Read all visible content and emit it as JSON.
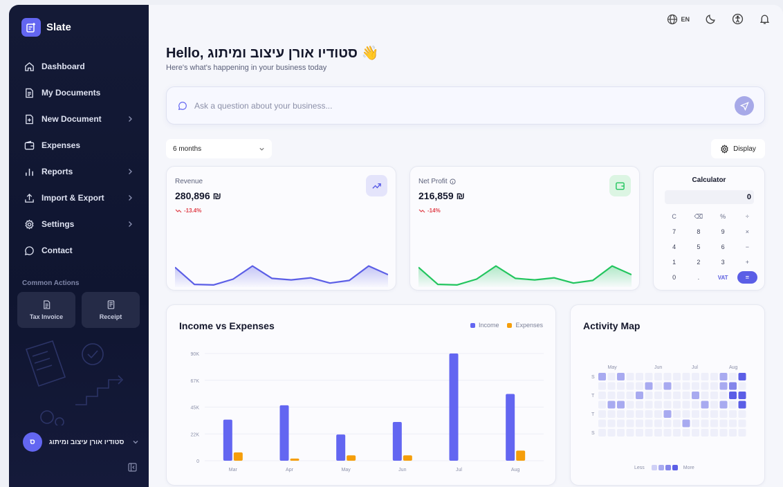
{
  "brand": {
    "name": "Slate"
  },
  "sidebar": {
    "items": [
      {
        "label": "Dashboard",
        "icon": "home-icon",
        "has_chevron": false
      },
      {
        "label": "My Documents",
        "icon": "document-icon",
        "has_chevron": false
      },
      {
        "label": "New Document",
        "icon": "file-plus-icon",
        "has_chevron": true
      },
      {
        "label": "Expenses",
        "icon": "wallet-icon",
        "has_chevron": false
      },
      {
        "label": "Reports",
        "icon": "bar-chart-icon",
        "has_chevron": true
      },
      {
        "label": "Import & Export",
        "icon": "upload-icon",
        "has_chevron": true
      },
      {
        "label": "Settings",
        "icon": "gear-icon",
        "has_chevron": true
      },
      {
        "label": "Contact",
        "icon": "chat-icon",
        "has_chevron": false
      }
    ],
    "common_actions_label": "Common Actions",
    "common_actions": [
      {
        "label": "Tax Invoice",
        "icon": "invoice-icon"
      },
      {
        "label": "Receipt",
        "icon": "receipt-icon"
      }
    ],
    "user": {
      "initial": "ס",
      "name": "סטודיו אורן עיצוב ומיתוג"
    }
  },
  "topbar": {
    "language": "EN"
  },
  "header": {
    "greeting": "Hello, סטודיו אורן עיצוב ומיתוג 👋",
    "subtitle": "Here's what's happening in your business today"
  },
  "ask": {
    "placeholder": "Ask a question about your business..."
  },
  "filters": {
    "period": "6 months",
    "display_label": "Display"
  },
  "kpis": [
    {
      "label": "Revenue",
      "value": "280,896 ₪",
      "change": "-13.4%",
      "color": "#5b5ee6",
      "trend": [
        0.7,
        0.05,
        0.03,
        0.25,
        0.75,
        0.28,
        0.22,
        0.3,
        0.1,
        0.2,
        0.75,
        0.42
      ]
    },
    {
      "label": "Net Profit",
      "value": "216,859 ₪",
      "change": "-14%",
      "color": "#22c55e",
      "trend": [
        0.7,
        0.05,
        0.03,
        0.25,
        0.75,
        0.28,
        0.22,
        0.3,
        0.1,
        0.2,
        0.75,
        0.42
      ]
    }
  ],
  "calculator": {
    "title": "Calculator",
    "display": "0",
    "keys": [
      "C",
      "⌫",
      "%",
      "÷",
      "7",
      "8",
      "9",
      "×",
      "4",
      "5",
      "6",
      "−",
      "1",
      "2",
      "3",
      "+",
      "0",
      ".",
      "VAT",
      "="
    ]
  },
  "income_expenses": {
    "title": "Income vs Expenses",
    "legend": {
      "income": "Income",
      "expenses": "Expenses"
    },
    "colors": {
      "income": "#6366f1",
      "expenses": "#f59e0b"
    }
  },
  "chart_data": {
    "type": "bar",
    "categories": [
      "Mar",
      "Apr",
      "May",
      "Jun",
      "Jul",
      "Aug"
    ],
    "series": [
      {
        "name": "Income",
        "values": [
          34500,
          46500,
          22000,
          32500,
          90000,
          56000
        ]
      },
      {
        "name": "Expenses",
        "values": [
          7000,
          1800,
          4500,
          4500,
          0,
          8500
        ]
      }
    ],
    "yticks": [
      "0",
      "22K",
      "45K",
      "67K",
      "90K"
    ],
    "ylim": [
      0,
      90000
    ],
    "title": "Income vs Expenses"
  },
  "activity": {
    "title": "Activity Map",
    "months": [
      "May",
      "Jun",
      "Jul",
      "Aug"
    ],
    "days": [
      "S",
      "T",
      "T",
      "S"
    ],
    "legend_less": "Less",
    "legend_more": "More"
  }
}
